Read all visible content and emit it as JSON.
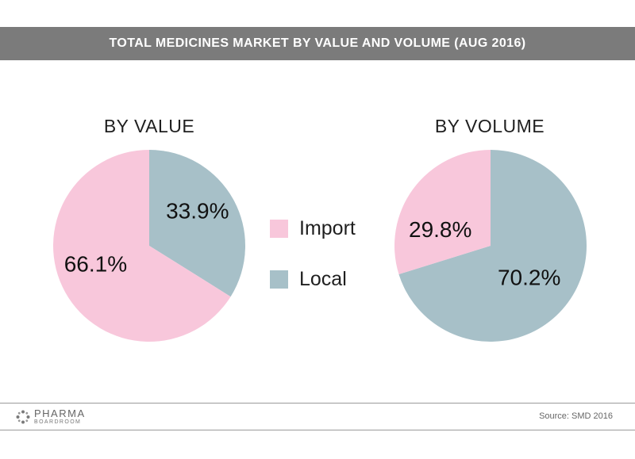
{
  "header": {
    "title": "TOTAL MEDICINES MARKET BY VALUE AND VOLUME (AUG 2016)"
  },
  "colors": {
    "import": "#f8c7db",
    "local": "#a7c0c8",
    "title_bar": "#7b7b7b"
  },
  "legend": {
    "placement": "center",
    "items": [
      {
        "label": "Import",
        "color": "#f8c7db"
      },
      {
        "label": "Local",
        "color": "#a7c0c8"
      }
    ]
  },
  "chart_data": [
    {
      "type": "pie",
      "title": "BY VALUE",
      "slices": [
        {
          "name": "Local",
          "value": 33.9,
          "label": "33.9%",
          "color": "#a7c0c8"
        },
        {
          "name": "Import",
          "value": 66.1,
          "label": "66.1%",
          "color": "#f8c7db"
        }
      ]
    },
    {
      "type": "pie",
      "title": "BY VOLUME",
      "slices": [
        {
          "name": "Local",
          "value": 70.2,
          "label": "70.2%",
          "color": "#a7c0c8"
        },
        {
          "name": "Import",
          "value": 29.8,
          "label": "29.8%",
          "color": "#f8c7db"
        }
      ]
    }
  ],
  "footer": {
    "logo_text": "PHARMA",
    "logo_subtext": "BOARDROOM",
    "logo_icon": "dots-icon",
    "source": "Source: SMD 2016"
  }
}
